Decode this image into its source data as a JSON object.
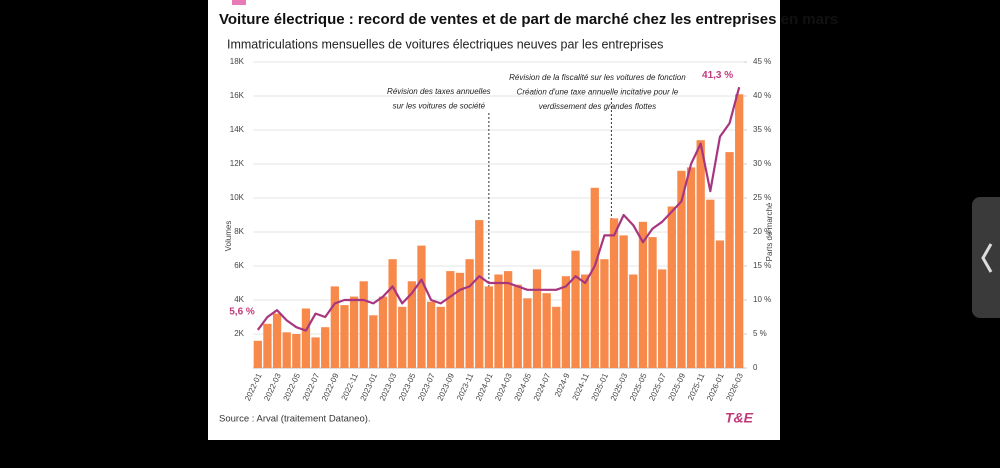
{
  "chart_data": {
    "type": "bar_line",
    "title": "Voiture électrique : record de ventes et de part de marché chez les entreprises en mars",
    "subtitle": "Immatriculations mensuelles de voitures électriques neuves par les entreprises",
    "source": "Source : Arval (traitement Dataneo).",
    "logo": "T&E",
    "y_label": "Volumes",
    "y2_label": "Parts de marché",
    "categories": [
      "2022-01",
      null,
      "2022-03",
      null,
      "2022-05",
      null,
      "2022-07",
      null,
      "2022-09",
      null,
      "2022-11",
      null,
      "2023-01",
      null,
      "2023-03",
      null,
      "2023-05",
      null,
      "2023-07",
      null,
      "2023-09",
      null,
      "2023-11",
      null,
      "2024-01",
      null,
      "2024-03",
      null,
      "2024-05",
      null,
      "2024-07",
      null,
      "2024-9",
      null,
      "2024-11",
      null,
      "2025-01",
      null,
      "2025-03",
      null,
      "2025-05",
      null,
      "2025-07",
      null,
      "2025-09",
      null,
      "2025-11",
      null,
      "2026-01",
      null,
      "2026-03"
    ],
    "series": [
      {
        "name": "Volumes",
        "type": "bar",
        "color": "#f7894a",
        "values": [
          1600,
          2600,
          3200,
          2100,
          2000,
          3500,
          1800,
          2400,
          4800,
          3700,
          4200,
          5100,
          3100,
          4200,
          6400,
          3600,
          5100,
          7200,
          3900,
          3600,
          5700,
          5600,
          6400,
          8700,
          4800,
          5500,
          5700,
          4900,
          4100,
          5800,
          4400,
          3600,
          5400,
          6900,
          5500,
          10600,
          6400,
          8800,
          7800,
          5500,
          8600,
          7700,
          5800,
          9500,
          11600,
          11800,
          13400,
          9900,
          7500,
          12700,
          16100
        ]
      },
      {
        "name": "Parts de marché",
        "type": "line",
        "axis": "y2",
        "color": "#a8367f",
        "values": [
          5.6,
          7.5,
          8.5,
          7.0,
          6.0,
          5.5,
          8.0,
          7.5,
          9.5,
          10.0,
          10.0,
          10.0,
          9.5,
          10.5,
          12.0,
          9.5,
          11.0,
          13.0,
          10.0,
          9.5,
          10.5,
          11.5,
          12.0,
          13.5,
          12.5,
          12.5,
          12.5,
          12.0,
          11.5,
          11.5,
          11.5,
          11.5,
          12.0,
          13.5,
          12.5,
          15.0,
          19.5,
          19.5,
          22.5,
          21.0,
          18.5,
          20.5,
          21.5,
          23.0,
          24.5,
          30.0,
          33.0,
          26.0,
          34.0,
          36.0,
          41.3
        ],
        "value_labels": [
          "5,6 %",
          null,
          null,
          null,
          null,
          null,
          null,
          null,
          null,
          null,
          null,
          null,
          null,
          null,
          null,
          null,
          null,
          null,
          null,
          null,
          null,
          null,
          null,
          null,
          null,
          null,
          null,
          null,
          null,
          null,
          null,
          null,
          null,
          null,
          null,
          null,
          null,
          null,
          null,
          null,
          null,
          null,
          null,
          null,
          null,
          null,
          null,
          null,
          null,
          null,
          "41,3 %"
        ]
      }
    ],
    "ylim": [
      0,
      18000
    ],
    "yticks": [
      {
        "value": 2000,
        "label": "2K"
      },
      {
        "value": 4000,
        "label": "4K"
      },
      {
        "value": 6000,
        "label": "6K"
      },
      {
        "value": 8000,
        "label": "8K"
      },
      {
        "value": 10000,
        "label": "10K"
      },
      {
        "value": 12000,
        "label": "12K"
      },
      {
        "value": 14000,
        "label": "14K"
      },
      {
        "value": 16000,
        "label": "16K"
      },
      {
        "value": 18000,
        "label": "18K"
      }
    ],
    "y2lim": [
      0,
      45
    ],
    "y2ticks": [
      0,
      {
        "value": 5,
        "label": "5 %"
      },
      {
        "value": 10,
        "label": "10 %"
      },
      {
        "value": 15,
        "label": "15 %"
      },
      {
        "value": 20,
        "label": "20 %"
      },
      {
        "value": 25,
        "label": "25 %"
      },
      {
        "value": 30,
        "label": "30 %"
      },
      {
        "value": 35,
        "label": "35 %"
      },
      {
        "value": 40,
        "label": "40 %"
      },
      {
        "value": 45,
        "label": "45 %"
      }
    ],
    "grid": true,
    "annotations": [
      {
        "x": "2024-01",
        "lines": [
          "Révision des taxes annuelles",
          "sur les voitures de société"
        ]
      },
      {
        "x": "2025-01",
        "lines": [
          "Révision de la fiscalité sur les voitures de fonction",
          "Création d'une taxe annuelle incitative pour le",
          "verdissement des grandes flottes"
        ]
      }
    ]
  }
}
